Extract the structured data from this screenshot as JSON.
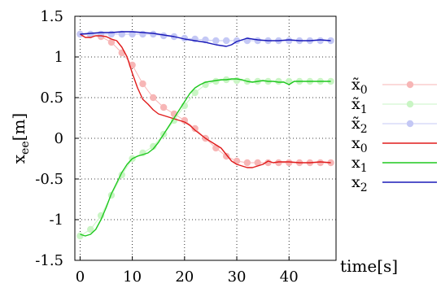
{
  "chart_data": {
    "type": "line",
    "xlabel": "time[s]",
    "ylabel": "x",
    "ylabel_sub": "ee",
    "ylabel_unit": "[m]",
    "xlim": [
      -1,
      49
    ],
    "ylim": [
      -1.5,
      1.5
    ],
    "xticks": [
      0,
      10,
      20,
      30,
      40
    ],
    "yticks": [
      -1.5,
      -1,
      -0.5,
      0,
      0.5,
      1,
      1.5
    ],
    "xtick_labels": [
      "0",
      "10",
      "20",
      "30",
      "40"
    ],
    "ytick_labels": [
      "-1.5",
      "-1",
      "-0.5",
      "0",
      "0.5",
      "1",
      "1.5"
    ],
    "grid": true,
    "legend_position": "right",
    "series": [
      {
        "name": "x̃",
        "sub": "0",
        "color": "#f7b6b6",
        "style": "points",
        "x": [
          0,
          2,
          4,
          6,
          8,
          10,
          12,
          14,
          16,
          18,
          20,
          22,
          24,
          26,
          28,
          30,
          32,
          34,
          36,
          38,
          40,
          42,
          44,
          46,
          48
        ],
        "y": [
          1.28,
          1.27,
          1.25,
          1.18,
          1.05,
          0.9,
          0.67,
          0.5,
          0.38,
          0.3,
          0.22,
          0.12,
          0.0,
          -0.12,
          -0.22,
          -0.28,
          -0.3,
          -0.3,
          -0.3,
          -0.3,
          -0.3,
          -0.3,
          -0.3,
          -0.3,
          -0.3
        ]
      },
      {
        "name": "x̃",
        "sub": "1",
        "color": "#c9f5c4",
        "style": "points",
        "x": [
          0,
          2,
          4,
          6,
          8,
          10,
          12,
          14,
          16,
          18,
          20,
          22,
          24,
          26,
          28,
          30,
          32,
          34,
          36,
          38,
          40,
          42,
          44,
          46,
          48
        ],
        "y": [
          -1.2,
          -1.12,
          -0.95,
          -0.7,
          -0.45,
          -0.25,
          -0.18,
          -0.1,
          0.05,
          0.22,
          0.4,
          0.56,
          0.66,
          0.7,
          0.72,
          0.71,
          0.7,
          0.7,
          0.7,
          0.7,
          0.7,
          0.7,
          0.7,
          0.7,
          0.7
        ]
      },
      {
        "name": "x̃",
        "sub": "2",
        "color": "#c4c8f5",
        "style": "points",
        "x": [
          0,
          2,
          4,
          6,
          8,
          10,
          12,
          14,
          16,
          18,
          20,
          22,
          24,
          26,
          28,
          30,
          32,
          34,
          36,
          38,
          40,
          42,
          44,
          46,
          48
        ],
        "y": [
          1.28,
          1.28,
          1.28,
          1.28,
          1.28,
          1.28,
          1.28,
          1.28,
          1.26,
          1.25,
          1.23,
          1.22,
          1.21,
          1.2,
          1.2,
          1.2,
          1.2,
          1.2,
          1.2,
          1.2,
          1.2,
          1.2,
          1.2,
          1.2,
          1.2
        ]
      },
      {
        "name": "x",
        "sub": "0",
        "color": "#e01b1b",
        "style": "line",
        "x": [
          0,
          1,
          2,
          3,
          4,
          5,
          6,
          7,
          8,
          9,
          10,
          11,
          12,
          13,
          14,
          15,
          16,
          17,
          18,
          19,
          20,
          21,
          22,
          23,
          24,
          25,
          26,
          27,
          28,
          29,
          30,
          31,
          32,
          33,
          34,
          35,
          36,
          37,
          38,
          40,
          42,
          44,
          46,
          48
        ],
        "y": [
          1.28,
          1.24,
          1.24,
          1.26,
          1.26,
          1.25,
          1.22,
          1.2,
          1.12,
          1.0,
          0.8,
          0.62,
          0.48,
          0.42,
          0.35,
          0.3,
          0.28,
          0.26,
          0.24,
          0.22,
          0.2,
          0.16,
          0.1,
          0.05,
          0.0,
          -0.04,
          -0.08,
          -0.12,
          -0.2,
          -0.28,
          -0.32,
          -0.34,
          -0.36,
          -0.36,
          -0.34,
          -0.32,
          -0.28,
          -0.3,
          -0.29,
          -0.29,
          -0.3,
          -0.3,
          -0.29,
          -0.3
        ]
      },
      {
        "name": "x",
        "sub": "1",
        "color": "#1ec81e",
        "style": "line",
        "x": [
          0,
          1,
          2,
          3,
          4,
          5,
          6,
          7,
          8,
          9,
          10,
          11,
          12,
          13,
          14,
          15,
          16,
          17,
          18,
          19,
          20,
          21,
          22,
          23,
          24,
          25,
          26,
          27,
          28,
          29,
          30,
          31,
          32,
          33,
          34,
          35,
          36,
          37,
          38,
          39,
          40,
          41,
          42,
          44,
          46,
          48
        ],
        "y": [
          -1.18,
          -1.2,
          -1.18,
          -1.12,
          -1.0,
          -0.85,
          -0.68,
          -0.55,
          -0.42,
          -0.32,
          -0.25,
          -0.22,
          -0.2,
          -0.18,
          -0.13,
          -0.05,
          0.05,
          0.15,
          0.25,
          0.35,
          0.45,
          0.55,
          0.62,
          0.66,
          0.69,
          0.7,
          0.71,
          0.72,
          0.72,
          0.73,
          0.73,
          0.72,
          0.7,
          0.69,
          0.7,
          0.71,
          0.7,
          0.7,
          0.69,
          0.69,
          0.66,
          0.7,
          0.7,
          0.7,
          0.7,
          0.7
        ]
      },
      {
        "name": "x",
        "sub": "2",
        "color": "#1a1ab8",
        "style": "line",
        "x": [
          0,
          2,
          4,
          6,
          8,
          10,
          12,
          14,
          16,
          18,
          20,
          22,
          24,
          26,
          27,
          28,
          29,
          30,
          31,
          32,
          34,
          36,
          38,
          40,
          42,
          44,
          46,
          48
        ],
        "y": [
          1.28,
          1.29,
          1.3,
          1.3,
          1.31,
          1.31,
          1.3,
          1.29,
          1.27,
          1.25,
          1.22,
          1.2,
          1.18,
          1.15,
          1.14,
          1.13,
          1.15,
          1.19,
          1.21,
          1.23,
          1.21,
          1.2,
          1.2,
          1.21,
          1.2,
          1.2,
          1.21,
          1.2
        ]
      }
    ]
  }
}
